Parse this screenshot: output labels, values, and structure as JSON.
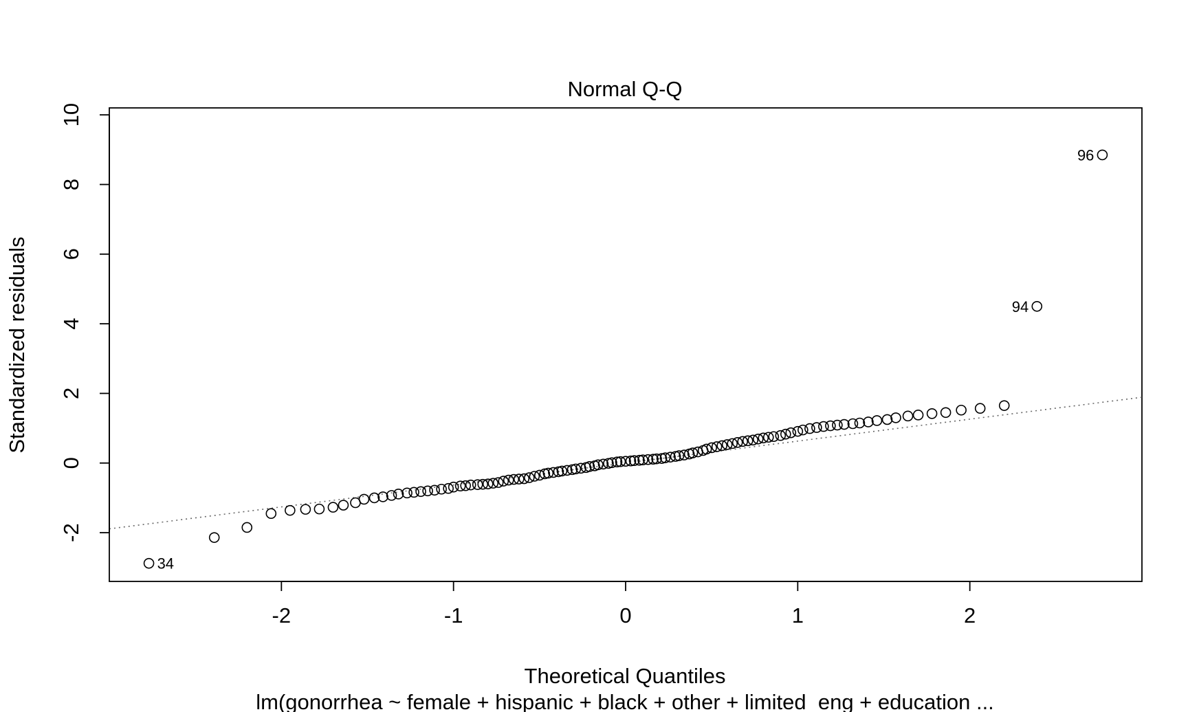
{
  "chart_data": {
    "type": "scatter",
    "title": "Normal Q-Q",
    "xlabel": "Theoretical Quantiles",
    "ylabel": "Standardized residuals",
    "subtitle": "lm(gonorrhea ~ female + hispanic + black + other + limited_eng + education  ...",
    "xlim": [
      -3.0,
      3.0
    ],
    "ylim": [
      -3.4,
      10.2
    ],
    "x_ticks": [
      -2,
      -1,
      0,
      1,
      2
    ],
    "y_ticks": [
      -2,
      0,
      2,
      4,
      6,
      8,
      10
    ],
    "x_tick_labels": [
      "-2",
      "-1",
      "0",
      "1",
      "2"
    ],
    "y_tick_labels": [
      "-2",
      "0",
      "2",
      "4",
      "6",
      "8",
      "10"
    ],
    "grid": false,
    "reference_line": {
      "intercept": 0.0,
      "slope": 0.63,
      "style": "dotted",
      "color": "#666666"
    },
    "points": {
      "x": [
        -2.77,
        -2.39,
        -2.2,
        -2.06,
        -1.95,
        -1.86,
        -1.78,
        -1.7,
        -1.64,
        -1.57,
        -1.52,
        -1.46,
        -1.41,
        -1.36,
        -1.32,
        -1.27,
        -1.23,
        -1.19,
        -1.15,
        -1.11,
        -1.07,
        -1.03,
        -1.0,
        -0.96,
        -0.93,
        -0.9,
        -0.86,
        -0.83,
        -0.8,
        -0.77,
        -0.74,
        -0.71,
        -0.68,
        -0.65,
        -0.62,
        -0.59,
        -0.56,
        -0.53,
        -0.5,
        -0.47,
        -0.45,
        -0.42,
        -0.39,
        -0.37,
        -0.34,
        -0.31,
        -0.29,
        -0.26,
        -0.23,
        -0.21,
        -0.18,
        -0.16,
        -0.13,
        -0.1,
        -0.08,
        -0.05,
        -0.03,
        0.0,
        0.03,
        0.05,
        0.08,
        0.1,
        0.13,
        0.16,
        0.18,
        0.21,
        0.23,
        0.26,
        0.29,
        0.31,
        0.34,
        0.37,
        0.39,
        0.42,
        0.45,
        0.47,
        0.5,
        0.53,
        0.56,
        0.59,
        0.62,
        0.65,
        0.68,
        0.71,
        0.74,
        0.77,
        0.8,
        0.83,
        0.86,
        0.9,
        0.93,
        0.96,
        1.0,
        1.03,
        1.07,
        1.11,
        1.15,
        1.19,
        1.23,
        1.27,
        1.32,
        1.36,
        1.41,
        1.46,
        1.52,
        1.57,
        1.64,
        1.7,
        1.78,
        1.86,
        1.95,
        2.06,
        2.2,
        2.39,
        2.77
      ],
      "y": [
        -2.88,
        -2.14,
        -1.85,
        -1.45,
        -1.36,
        -1.33,
        -1.32,
        -1.27,
        -1.21,
        -1.14,
        -1.04,
        -1.0,
        -0.97,
        -0.93,
        -0.89,
        -0.86,
        -0.84,
        -0.82,
        -0.8,
        -0.78,
        -0.75,
        -0.73,
        -0.69,
        -0.66,
        -0.65,
        -0.63,
        -0.62,
        -0.61,
        -0.6,
        -0.58,
        -0.56,
        -0.52,
        -0.49,
        -0.47,
        -0.46,
        -0.45,
        -0.42,
        -0.38,
        -0.35,
        -0.31,
        -0.29,
        -0.27,
        -0.25,
        -0.23,
        -0.21,
        -0.19,
        -0.17,
        -0.15,
        -0.13,
        -0.1,
        -0.08,
        -0.05,
        -0.03,
        -0.01,
        0.01,
        0.03,
        0.04,
        0.05,
        0.06,
        0.07,
        0.08,
        0.09,
        0.1,
        0.11,
        0.12,
        0.13,
        0.15,
        0.17,
        0.19,
        0.21,
        0.23,
        0.26,
        0.29,
        0.32,
        0.36,
        0.4,
        0.44,
        0.47,
        0.5,
        0.53,
        0.56,
        0.59,
        0.62,
        0.64,
        0.66,
        0.69,
        0.72,
        0.74,
        0.76,
        0.79,
        0.83,
        0.87,
        0.91,
        0.95,
        0.99,
        1.02,
        1.05,
        1.07,
        1.09,
        1.11,
        1.13,
        1.15,
        1.18,
        1.22,
        1.25,
        1.3,
        1.35,
        1.38,
        1.42,
        1.45,
        1.52,
        1.57,
        1.65,
        4.5,
        8.85
      ],
      "marker": "open-circle",
      "color": "#000000"
    },
    "point_labels": [
      {
        "text": "34",
        "x": -2.77,
        "y": -2.88,
        "side": "right"
      },
      {
        "text": "94",
        "x": 2.39,
        "y": 4.5,
        "side": "left"
      },
      {
        "text": "96",
        "x": 2.77,
        "y": 8.85,
        "side": "left"
      }
    ]
  }
}
